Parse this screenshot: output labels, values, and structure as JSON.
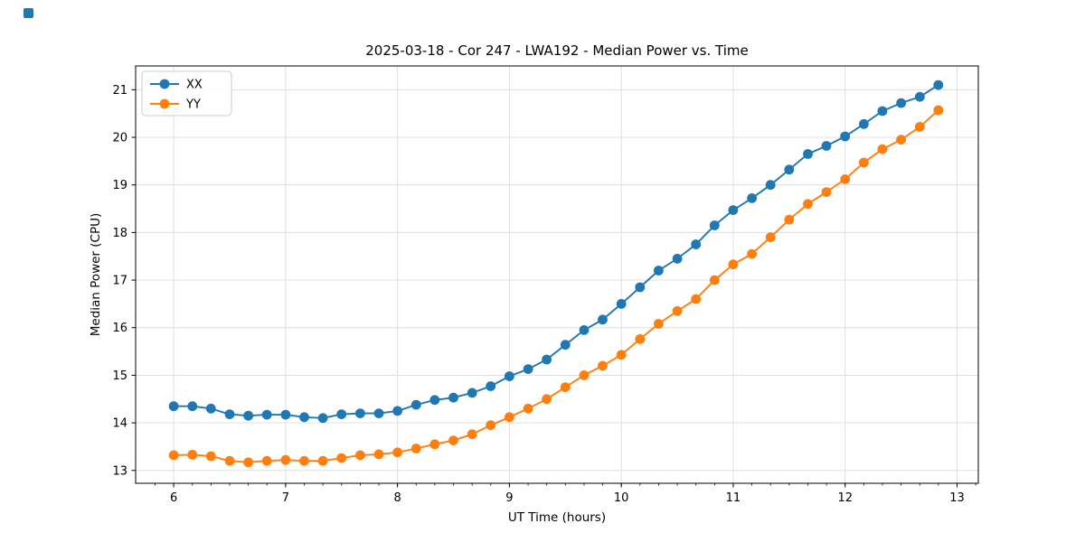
{
  "chart_data": {
    "type": "line",
    "title": "2025-03-18 - Cor 247 - LWA192 - Median Power vs. Time",
    "xlabel": "UT Time (hours)",
    "ylabel": "Median Power (CPU)",
    "grid": true,
    "legend_position": "upper left",
    "marker": "o",
    "xlim": [
      5.66,
      13.19
    ],
    "ylim": [
      12.73,
      21.5
    ],
    "xticks": [
      6,
      7,
      8,
      9,
      10,
      11,
      12,
      13
    ],
    "yticks": [
      13,
      14,
      15,
      16,
      17,
      18,
      19,
      20,
      21
    ],
    "minor_tick_step_x": 0.16667,
    "x": [
      6.0,
      6.167,
      6.333,
      6.5,
      6.667,
      6.833,
      7.0,
      7.167,
      7.333,
      7.5,
      7.667,
      7.833,
      8.0,
      8.167,
      8.333,
      8.5,
      8.667,
      8.833,
      9.0,
      9.167,
      9.333,
      9.5,
      9.667,
      9.833,
      10.0,
      10.167,
      10.333,
      10.5,
      10.667,
      10.833,
      11.0,
      11.167,
      11.333,
      11.5,
      11.667,
      11.833,
      12.0,
      12.167,
      12.333,
      12.5,
      12.667,
      12.833
    ],
    "series": [
      {
        "name": "XX",
        "color": "#1f77b4",
        "values": [
          14.35,
          14.35,
          14.3,
          14.18,
          14.15,
          14.17,
          14.17,
          14.12,
          14.1,
          14.18,
          14.2,
          14.2,
          14.25,
          14.38,
          14.48,
          14.53,
          14.63,
          14.77,
          14.98,
          15.13,
          15.33,
          15.64,
          15.95,
          16.17,
          16.5,
          16.85,
          17.2,
          17.45,
          17.75,
          18.15,
          18.47,
          18.72,
          19.0,
          19.32,
          19.65,
          19.82,
          20.02,
          20.28,
          20.55,
          20.72,
          20.85,
          21.1
        ]
      },
      {
        "name": "YY",
        "color": "#ff7f0e",
        "values": [
          13.32,
          13.33,
          13.3,
          13.2,
          13.17,
          13.2,
          13.22,
          13.2,
          13.2,
          13.26,
          13.32,
          13.34,
          13.38,
          13.46,
          13.55,
          13.63,
          13.76,
          13.95,
          14.12,
          14.3,
          14.5,
          14.75,
          15.0,
          15.2,
          15.43,
          15.76,
          16.08,
          16.35,
          16.6,
          17.0,
          17.33,
          17.55,
          17.9,
          18.27,
          18.6,
          18.85,
          19.12,
          19.47,
          19.75,
          19.95,
          20.22,
          20.57
        ]
      }
    ],
    "style": {
      "grid_color": "#dcdcdc",
      "spine_color": "#000000",
      "background": "#ffffff"
    }
  },
  "page": {
    "corner_icon_color": "#1f77b4"
  }
}
